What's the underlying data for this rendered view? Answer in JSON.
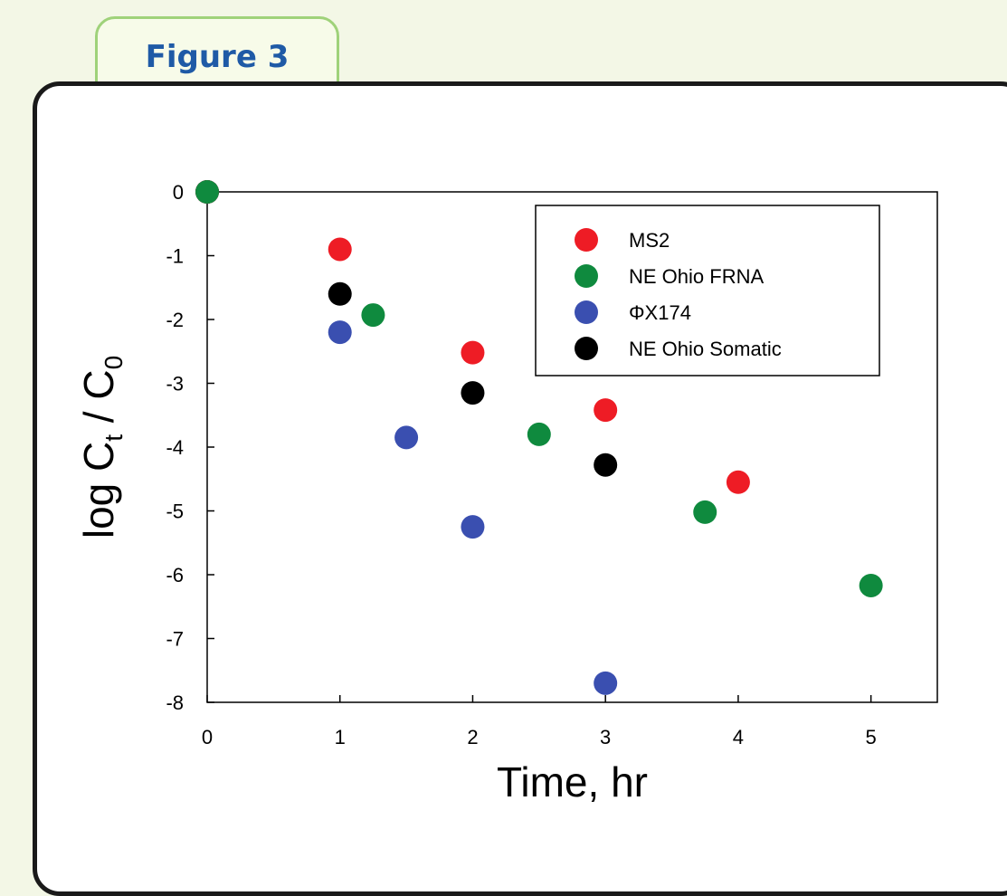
{
  "figure_tab": {
    "label": "Figure 3"
  },
  "colors": {
    "MS2": "#ee1c25",
    "NE Ohio FRNA": "#0f8a3e",
    "ΦX174": "#3a4fb0",
    "NE Ohio Somatic": "#000000"
  },
  "chart_data": {
    "type": "scatter",
    "xlabel": "Time, hr",
    "ylabel_parts": {
      "log": "log C",
      "sub1": "t",
      "mid": " / C",
      "sub2": "0"
    },
    "xlim": [
      0,
      5.5
    ],
    "ylim": [
      -8,
      0
    ],
    "xticks": [
      "0",
      "1",
      "2",
      "3",
      "4",
      "5"
    ],
    "yticks": [
      "0",
      "-1",
      "-2",
      "-3",
      "-4",
      "-5",
      "-6",
      "-7",
      "-8"
    ],
    "legend_position": "top-right",
    "series": [
      {
        "name": "MS2",
        "points": [
          [
            0,
            0
          ],
          [
            1,
            -0.9
          ],
          [
            2,
            -2.52
          ],
          [
            3,
            -3.42
          ],
          [
            4,
            -4.55
          ]
        ]
      },
      {
        "name": "NE Ohio FRNA",
        "points": [
          [
            0,
            0
          ],
          [
            1.25,
            -1.93
          ],
          [
            2.5,
            -3.8
          ],
          [
            3.75,
            -5.02
          ],
          [
            5,
            -6.17
          ]
        ]
      },
      {
        "name": "ΦX174",
        "points": [
          [
            0,
            0
          ],
          [
            1,
            -2.2
          ],
          [
            1.5,
            -3.85
          ],
          [
            2,
            -5.25
          ],
          [
            3,
            -7.7
          ]
        ]
      },
      {
        "name": "NE Ohio Somatic",
        "points": [
          [
            0,
            0
          ],
          [
            1,
            -1.6
          ],
          [
            2,
            -3.15
          ],
          [
            3,
            -4.28
          ]
        ]
      }
    ]
  }
}
